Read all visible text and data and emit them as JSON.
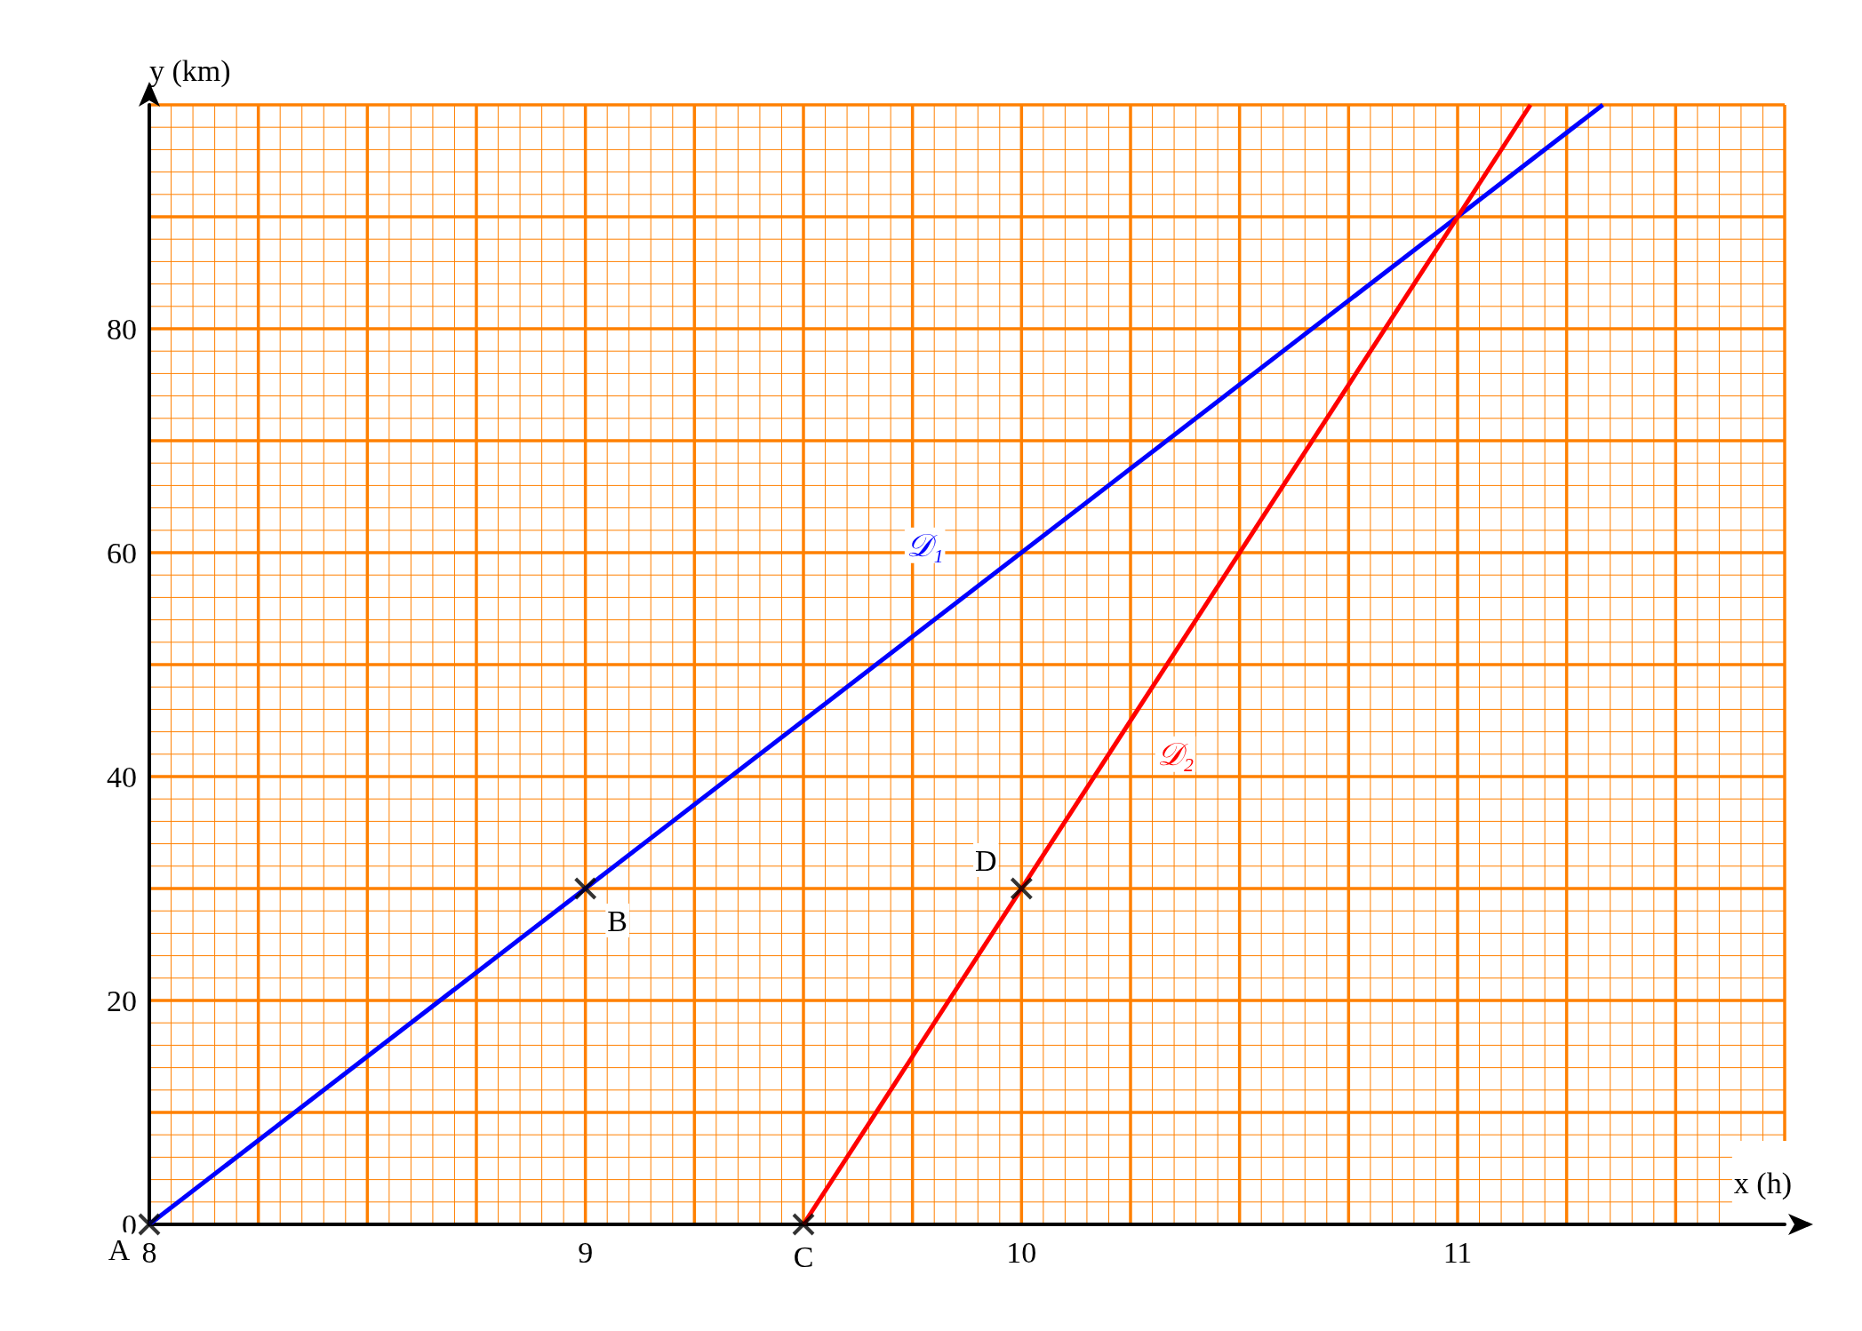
{
  "chart_data": {
    "type": "line",
    "xlabel": "x (h)",
    "ylabel": "y (km)",
    "xlim": [
      8,
      11.75
    ],
    "ylim": [
      0,
      100
    ],
    "xticks": [
      8,
      {
        "value": 8.05,
        "label": null
      },
      {
        "value": 8.1,
        "label": null
      },
      {
        "value": 8.15,
        "label": null
      },
      {
        "value": 8.2,
        "label": null
      },
      {
        "value": 8.25,
        "label": null
      },
      {
        "value": 8.3,
        "label": null
      },
      {
        "value": 8.35,
        "label": null
      },
      {
        "value": 8.4,
        "label": null
      },
      {
        "value": 8.45,
        "label": null
      },
      {
        "value": 8.5,
        "label": null
      },
      {
        "value": 8.55,
        "label": null
      },
      {
        "value": 8.6,
        "label": null
      },
      {
        "value": 8.65,
        "label": null
      },
      {
        "value": 8.7,
        "label": null
      },
      {
        "value": 8.75,
        "label": null
      },
      {
        "value": 8.8,
        "label": null
      },
      {
        "value": 8.85,
        "label": null
      },
      {
        "value": 8.9,
        "label": null
      },
      {
        "value": 8.95,
        "label": null
      },
      9,
      {
        "value": 9.05,
        "label": null
      },
      {
        "value": 9.1,
        "label": null
      },
      {
        "value": 9.15,
        "label": null
      },
      {
        "value": 9.2,
        "label": null
      },
      {
        "value": 9.25,
        "label": null
      },
      {
        "value": 9.3,
        "label": null
      },
      {
        "value": 9.35,
        "label": null
      },
      {
        "value": 9.4,
        "label": null
      },
      {
        "value": 9.45,
        "label": null
      },
      {
        "value": 9.5,
        "label": null
      },
      {
        "value": 9.55,
        "label": null
      },
      {
        "value": 9.6,
        "label": null
      },
      {
        "value": 9.65,
        "label": null
      },
      {
        "value": 9.7,
        "label": null
      },
      {
        "value": 9.75,
        "label": null
      },
      {
        "value": 9.8,
        "label": null
      },
      {
        "value": 9.85,
        "label": null
      },
      {
        "value": 9.9,
        "label": null
      },
      {
        "value": 9.95,
        "label": null
      },
      10,
      {
        "value": 10.05,
        "label": null
      },
      {
        "value": 10.1,
        "label": null
      },
      {
        "value": 10.15,
        "label": null
      },
      {
        "value": 10.2,
        "label": null
      },
      {
        "value": 10.25,
        "label": null
      },
      {
        "value": 10.3,
        "label": null
      },
      {
        "value": 10.35,
        "label": null
      },
      {
        "value": 10.4,
        "label": null
      },
      {
        "value": 10.45,
        "label": null
      },
      {
        "value": 10.5,
        "label": null
      },
      {
        "value": 10.55,
        "label": null
      },
      {
        "value": 10.6,
        "label": null
      },
      {
        "value": 10.65,
        "label": null
      },
      {
        "value": 10.7,
        "label": null
      },
      {
        "value": 10.75,
        "label": null
      },
      {
        "value": 10.8,
        "label": null
      },
      {
        "value": 10.85,
        "label": null
      },
      {
        "value": 10.9,
        "label": null
      },
      {
        "value": 10.95,
        "label": null
      },
      11,
      {
        "value": 11.05,
        "label": null
      },
      {
        "value": 11.1,
        "label": null
      },
      {
        "value": 11.15,
        "label": null
      },
      {
        "value": 11.2,
        "label": null
      },
      {
        "value": 11.25,
        "label": null
      },
      {
        "value": 11.3,
        "label": null
      },
      {
        "value": 11.35,
        "label": null
      },
      {
        "value": 11.4,
        "label": null
      },
      {
        "value": 11.45,
        "label": null
      },
      {
        "value": 11.5,
        "label": null
      },
      {
        "value": 11.55,
        "label": null
      },
      {
        "value": 11.6,
        "label": null
      },
      {
        "value": 11.65,
        "label": null
      },
      {
        "value": 11.7,
        "label": null
      },
      {
        "value": 11.75,
        "label": null
      }
    ],
    "yticks": [
      0,
      {
        "value": 2,
        "label": null
      },
      {
        "value": 4,
        "label": null
      },
      {
        "value": 6,
        "label": null
      },
      {
        "value": 8,
        "label": null
      },
      {
        "value": 10,
        "label": null
      },
      {
        "value": 12,
        "label": null
      },
      {
        "value": 14,
        "label": null
      },
      {
        "value": 16,
        "label": null
      },
      {
        "value": 18,
        "label": null
      },
      20,
      {
        "value": 22,
        "label": null
      },
      {
        "value": 24,
        "label": null
      },
      {
        "value": 26,
        "label": null
      },
      {
        "value": 28,
        "label": null
      },
      {
        "value": 30,
        "label": null
      },
      {
        "value": 32,
        "label": null
      },
      {
        "value": 34,
        "label": null
      },
      {
        "value": 36,
        "label": null
      },
      {
        "value": 38,
        "label": null
      },
      40,
      {
        "value": 42,
        "label": null
      },
      {
        "value": 44,
        "label": null
      },
      {
        "value": 46,
        "label": null
      },
      {
        "value": 48,
        "label": null
      },
      {
        "value": 50,
        "label": null
      },
      {
        "value": 52,
        "label": null
      },
      {
        "value": 54,
        "label": null
      },
      {
        "value": 56,
        "label": null
      },
      {
        "value": 58,
        "label": null
      },
      60,
      {
        "value": 62,
        "label": null
      },
      {
        "value": 64,
        "label": null
      },
      {
        "value": 66,
        "label": null
      },
      {
        "value": 68,
        "label": null
      },
      {
        "value": 70,
        "label": null
      },
      {
        "value": 72,
        "label": null
      },
      {
        "value": 74,
        "label": null
      },
      {
        "value": 76,
        "label": null
      },
      {
        "value": 78,
        "label": null
      },
      80,
      {
        "value": 82,
        "label": null
      },
      {
        "value": 84,
        "label": null
      },
      {
        "value": 86,
        "label": null
      },
      {
        "value": 88,
        "label": null
      },
      {
        "value": 90,
        "label": null
      },
      {
        "value": 92,
        "label": null
      },
      {
        "value": 94,
        "label": null
      },
      {
        "value": 96,
        "label": null
      },
      {
        "value": 98,
        "label": null
      },
      {
        "value": 100,
        "label": null
      }
    ],
    "grid": true,
    "line_style": "solid",
    "series": [
      {
        "name": "𝒟₁",
        "color": "#0000ff",
        "x": [
          8,
          11.333
        ],
        "values": [
          0,
          100
        ]
      },
      {
        "name": "𝒟₂",
        "color": "#ff0000",
        "x": [
          9.5,
          11.167
        ],
        "values": [
          0,
          100
        ]
      },
      {
        "type": "scatter",
        "marker": "cross",
        "color": "#000000",
        "x": [
          8,
          9,
          9.5,
          10
        ],
        "values": [
          0,
          30,
          0,
          30
        ]
      }
    ],
    "annotations": [
      {
        "text": "A",
        "x": 8,
        "y": 0
      },
      {
        "text": "B",
        "x": 9,
        "y": 30
      },
      {
        "text": "C",
        "x": 9.5,
        "y": 0
      },
      {
        "text": "D",
        "x": 10,
        "y": 30
      }
    ]
  }
}
